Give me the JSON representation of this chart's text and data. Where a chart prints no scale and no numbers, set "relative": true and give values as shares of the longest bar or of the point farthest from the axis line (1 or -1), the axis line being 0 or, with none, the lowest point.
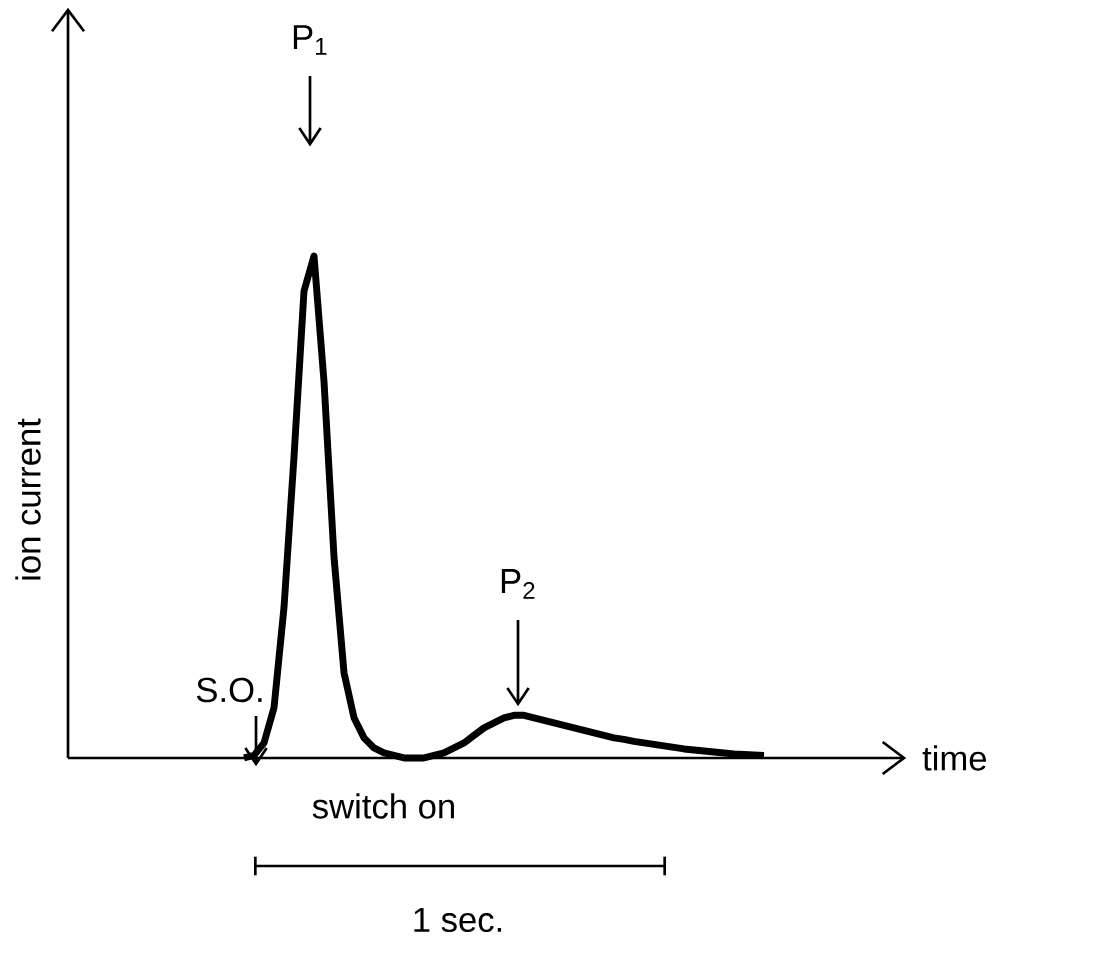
{
  "chart_data": {
    "type": "line",
    "relative": true,
    "xlabel": "time",
    "ylabel": "ion current",
    "categories": [
      null,
      null,
      null,
      null,
      null,
      null,
      null,
      null,
      null,
      null,
      null,
      null,
      null,
      null,
      null,
      null,
      null,
      null,
      null,
      null,
      null,
      null,
      null,
      null,
      null,
      null,
      null,
      null,
      null,
      null,
      null,
      null,
      null,
      null,
      null,
      null,
      null,
      null,
      null,
      null,
      null,
      null,
      null,
      null,
      null,
      null,
      null,
      null,
      null,
      null,
      null,
      null,
      null,
      null,
      null,
      null,
      null,
      null,
      null,
      null,
      null,
      null,
      null,
      null,
      null,
      null,
      null,
      null,
      null,
      null,
      null,
      null,
      null,
      null,
      null,
      null,
      null,
      null,
      null,
      null,
      null,
      null,
      null
    ],
    "series": [
      {
        "color": "#000000",
        "values": [
          null,
          null,
          null,
          null,
          null,
          null,
          null,
          null,
          null,
          null,
          null,
          null,
          null,
          null,
          null,
          null,
          null,
          0,
          0.005,
          0.03,
          0.1,
          0.3,
          0.6,
          0.93,
          1,
          0.75,
          0.4,
          0.17,
          0.08,
          0.04,
          0.02,
          0.01,
          0.005,
          0,
          0,
          0,
          0.005,
          0.01,
          0.02,
          0.03,
          0.045,
          0.06,
          0.07,
          0.08,
          0.085,
          0.085,
          0.08,
          0.075,
          0.07,
          0.065,
          0.06,
          0.055,
          0.05,
          0.045,
          0.04,
          0.037,
          0.033,
          0.03,
          0.027,
          0.024,
          0.021,
          0.018,
          0.016,
          0.014,
          0.012,
          0.01,
          0.008,
          0.007,
          0.006,
          0.005,
          null,
          null,
          null,
          null,
          null,
          null,
          null,
          null,
          null,
          null,
          null,
          null,
          null
        ]
      }
    ],
    "annotations": [
      "P$_{1}$",
      "P$_{2}$",
      "S.O.",
      "switch on",
      "1 sec."
    ]
  }
}
